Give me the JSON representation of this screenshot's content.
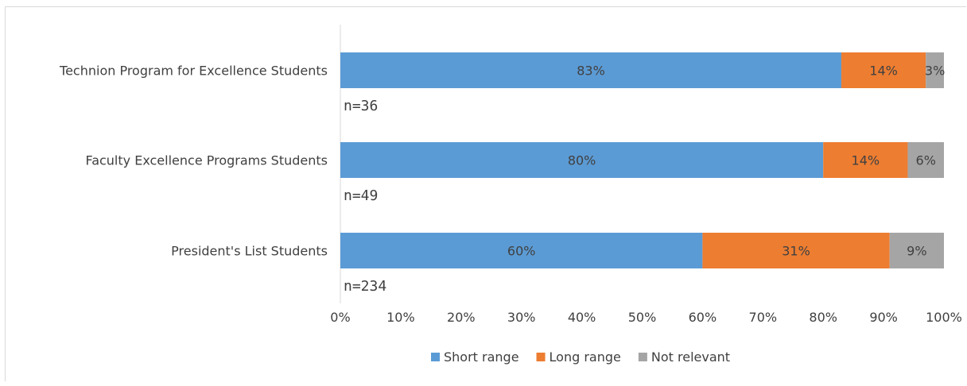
{
  "colors": {
    "short_range": "#5b9bd5",
    "long_range": "#ed7d31",
    "not_relevant": "#a5a5a5",
    "axis": "#d9d9d9",
    "text": "#404040"
  },
  "chart_data": {
    "type": "bar",
    "orientation": "horizontal",
    "stacked": true,
    "title": "",
    "xlabel": "",
    "ylabel": "",
    "xlim": [
      0,
      100
    ],
    "x_ticks": [
      "0%",
      "10%",
      "20%",
      "30%",
      "40%",
      "50%",
      "60%",
      "70%",
      "80%",
      "90%",
      "100%"
    ],
    "grid": false,
    "legend_position": "bottom",
    "categories": [
      "Technion Program for Excellence Students",
      "Faculty Excellence Programs Students",
      "President's List Students"
    ],
    "sample_sizes": [
      "n=36",
      "n=49",
      "n=234"
    ],
    "series": [
      {
        "name": "Short range",
        "values": [
          83,
          80,
          60
        ],
        "labels": [
          "83%",
          "80%",
          "60%"
        ]
      },
      {
        "name": "Long range",
        "values": [
          14,
          14,
          31
        ],
        "labels": [
          "14%",
          "14%",
          "31%"
        ]
      },
      {
        "name": "Not relevant",
        "values": [
          3,
          6,
          9
        ],
        "labels": [
          "3%",
          "6%",
          "9%"
        ]
      }
    ]
  }
}
